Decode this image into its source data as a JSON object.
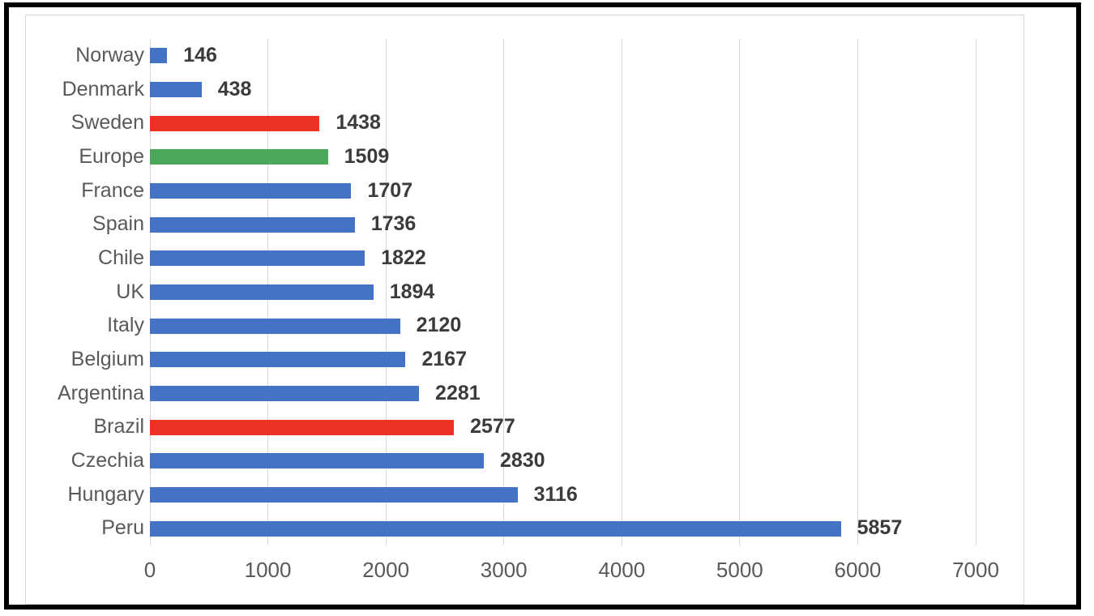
{
  "chart_data": {
    "type": "bar",
    "orientation": "horizontal",
    "title": "",
    "xlabel": "",
    "ylabel": "",
    "categories": [
      "Norway",
      "Denmark",
      "Sweden",
      "Europe",
      "France",
      "Spain",
      "Chile",
      "UK",
      "Italy",
      "Belgium",
      "Argentina",
      "Brazil",
      "Czechia",
      "Hungary",
      "Peru"
    ],
    "values": [
      146,
      438,
      1438,
      1509,
      1707,
      1736,
      1822,
      1894,
      2120,
      2167,
      2281,
      2577,
      2830,
      3116,
      5857
    ],
    "bar_colors": [
      "blue",
      "blue",
      "red",
      "green",
      "blue",
      "blue",
      "blue",
      "blue",
      "blue",
      "blue",
      "blue",
      "red",
      "blue",
      "blue",
      "blue"
    ],
    "data_labels": [
      146,
      438,
      1438,
      1509,
      1707,
      1736,
      1822,
      1894,
      2120,
      2167,
      2281,
      2577,
      2830,
      3116,
      5857
    ],
    "xlim": [
      0,
      7000
    ],
    "x_ticks": [
      0,
      1000,
      2000,
      3000,
      4000,
      5000,
      6000,
      7000
    ],
    "x_tick_labels": [
      "0",
      "1000",
      "2000",
      "3000",
      "4000",
      "5000",
      "6000",
      "7000"
    ],
    "grid": "vertical",
    "legend": "none",
    "colors": {
      "blue": "#4472C4",
      "red": "#EC3323",
      "green": "#4BA85B",
      "gridline": "#D9D9D9",
      "chart_border": "#D6D6D6",
      "frame_border": "#000000",
      "category_label": "#595959",
      "tick_label": "#595959",
      "value_label": "#3B3B3B"
    }
  }
}
